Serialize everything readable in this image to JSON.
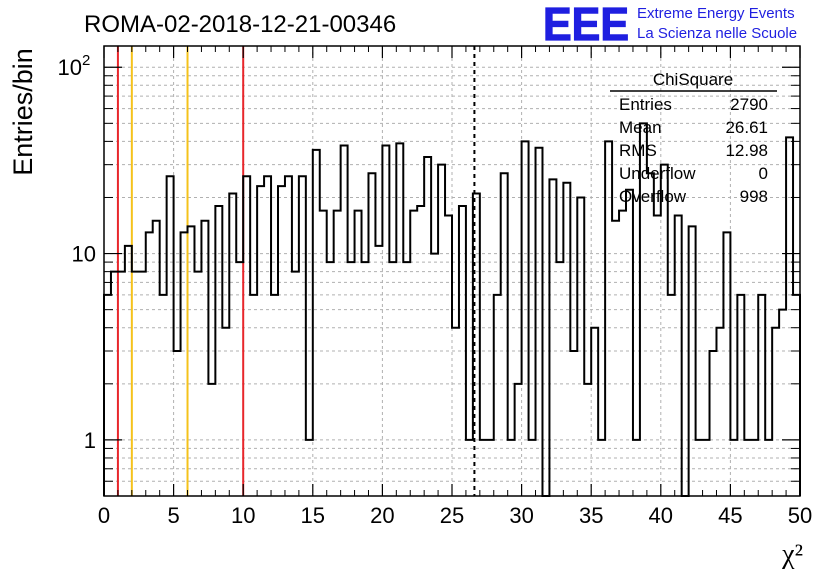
{
  "header": {
    "run_title": "ROMA-02-2018-12-21-00346",
    "logo_text": "EEE",
    "logo_line1": "Extreme Energy Events",
    "logo_line2": "La Scienza nelle Scuole"
  },
  "stats_box": {
    "title": "ChiSquare",
    "rows": [
      {
        "label": "Entries",
        "value": "2790"
      },
      {
        "label": "Mean",
        "value": "26.61"
      },
      {
        "label": "RMS",
        "value": "12.98"
      },
      {
        "label": "Underflow",
        "value": "0"
      },
      {
        "label": "Overflow",
        "value": "998"
      }
    ]
  },
  "colors": {
    "red_line": "#e8262b",
    "yellow_line": "#f5c21b",
    "logo_blue": "#1f1fe0",
    "grid": "#b0b0b0"
  },
  "chart_data": {
    "type": "histogram",
    "xlabel": "χ²",
    "ylabel": "Entries/bin",
    "xlim": [
      0,
      50
    ],
    "ylim": [
      0.5,
      130
    ],
    "y_scale": "log",
    "grid": true,
    "x_ticks": [
      "0",
      "5",
      "10",
      "15",
      "20",
      "25",
      "30",
      "35",
      "40",
      "45",
      "50"
    ],
    "y_ticks": [
      {
        "label": "1",
        "value": 1
      },
      {
        "label": "10",
        "value": 10
      },
      {
        "label": "10",
        "sup": "2",
        "value": 100
      }
    ],
    "bin_width": 0.5,
    "values": [
      6,
      8,
      8,
      11,
      8,
      8,
      13,
      15,
      6,
      26,
      3,
      13,
      14,
      8,
      15,
      2,
      18,
      4,
      21,
      9,
      26,
      6,
      23,
      26,
      6,
      23,
      26,
      8,
      26,
      1,
      36,
      17,
      9,
      17,
      38,
      9,
      17,
      9,
      27,
      11,
      38,
      9,
      39,
      9,
      17,
      18,
      33,
      10,
      30,
      16,
      4,
      18,
      1,
      21,
      1,
      1,
      6,
      27,
      1,
      2,
      40,
      1,
      37,
      0,
      25,
      9,
      24,
      3,
      20,
      2,
      4,
      1,
      40,
      15,
      17,
      22,
      1,
      50,
      27,
      16,
      30,
      6,
      16,
      0,
      14,
      1,
      1,
      3,
      4,
      13,
      1,
      6,
      1,
      1,
      6,
      1,
      4,
      5,
      42,
      6
    ],
    "vertical_markers": [
      {
        "x": 1,
        "style": "solid",
        "color": "red"
      },
      {
        "x": 2,
        "style": "solid",
        "color": "yellow"
      },
      {
        "x": 6,
        "style": "solid",
        "color": "yellow"
      },
      {
        "x": 10,
        "style": "solid",
        "color": "red"
      },
      {
        "x": 26.61,
        "style": "dashed",
        "color": "black"
      }
    ]
  }
}
